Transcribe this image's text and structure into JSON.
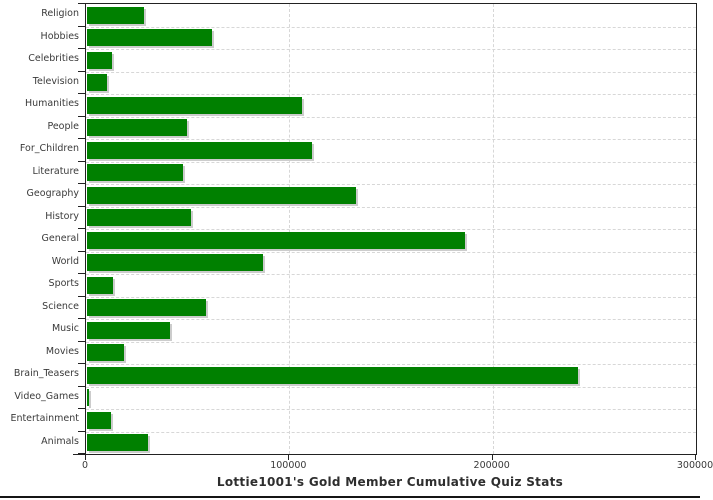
{
  "chart_data": {
    "type": "bar",
    "orientation": "horizontal",
    "title": "Lottie1001's Gold Member Cumulative Quiz Stats",
    "categories": [
      "Religion",
      "Hobbies",
      "Celebrities",
      "Television",
      "Humanities",
      "People",
      "For_Children",
      "Literature",
      "Geography",
      "History",
      "General",
      "World",
      "Sports",
      "Science",
      "Music",
      "Movies",
      "Brain_Teasers",
      "Video_Games",
      "Entertainment",
      "Animals"
    ],
    "values": [
      28000,
      61500,
      12500,
      10000,
      105500,
      49000,
      110500,
      47000,
      132500,
      51000,
      186000,
      86500,
      13000,
      58500,
      41000,
      18000,
      241500,
      1100,
      12000,
      30000
    ],
    "xlim": [
      0,
      300000
    ],
    "x_tick_labels": [
      "0",
      "100000",
      "200000",
      "300000"
    ],
    "x_tick_values": [
      0,
      100000,
      200000,
      300000
    ],
    "ylabel": "",
    "xlabel": "",
    "legend": "none",
    "grid": "dashed vertical at x ticks, dashed horizontal at category boundaries"
  },
  "colors": {
    "bar": "#008000",
    "bar_shadow": "#cccccc",
    "gridline": "#d7d7d7",
    "axis": "#222222",
    "label_text": "#3a3a3a",
    "title_text": "#2e2e2e",
    "background": "#ffffff",
    "bottom_rule": "#151515"
  }
}
